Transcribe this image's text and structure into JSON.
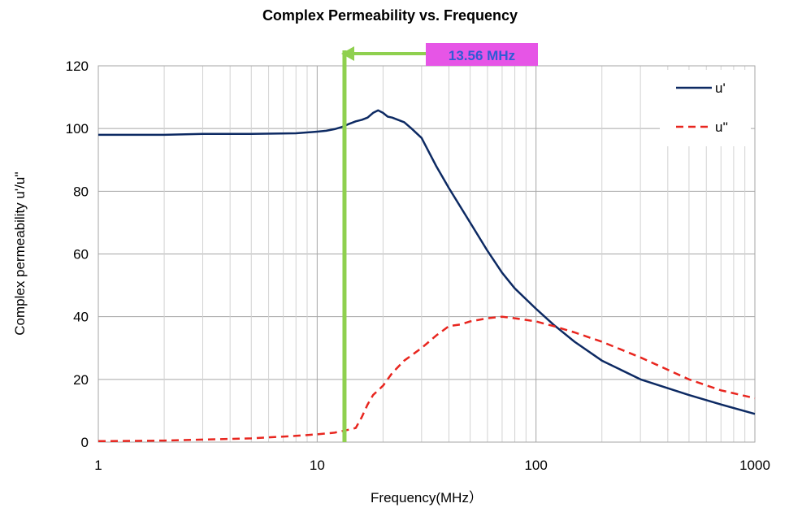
{
  "chart_data": {
    "type": "line",
    "title": "Complex Permeability vs. Frequency",
    "xlabel": "Frequency(MHz）",
    "ylabel": "Complex permeability u'/u''",
    "x_scale": "log",
    "xlim": [
      1,
      1000
    ],
    "ylim": [
      0,
      120
    ],
    "x_ticks": [
      1,
      10,
      100,
      1000
    ],
    "x_tick_labels": [
      "1",
      "10",
      "100",
      "1000"
    ],
    "y_ticks": [
      0,
      20,
      40,
      60,
      80,
      100,
      120
    ],
    "y_tick_labels": [
      "0",
      "20",
      "40",
      "60",
      "80",
      "100",
      "120"
    ],
    "grid": true,
    "legend_position": "top-right",
    "series": [
      {
        "name": "u'",
        "color": "#0d2a63",
        "style": "solid",
        "x": [
          1,
          1.5,
          2,
          3,
          5,
          8,
          10,
          11,
          12,
          13,
          14,
          15,
          16,
          17,
          18,
          19,
          20,
          21,
          22,
          25,
          27,
          30,
          35,
          40,
          50,
          60,
          70,
          80,
          100,
          120,
          150,
          200,
          300,
          500,
          700,
          1000
        ],
        "y": [
          98,
          98,
          98,
          98.3,
          98.3,
          98.5,
          99,
          99.3,
          99.8,
          100.5,
          101.5,
          102.3,
          102.8,
          103.5,
          105,
          105.8,
          105,
          103.8,
          103.5,
          102,
          100,
          97,
          88,
          81,
          70,
          61,
          54,
          49,
          42.5,
          37.5,
          32,
          26,
          20,
          15,
          12,
          9
        ]
      },
      {
        "name": "u''",
        "color": "#e8261f",
        "style": "dashed",
        "x": [
          1,
          1.5,
          2,
          3,
          5,
          8,
          10,
          12,
          14,
          15,
          16,
          17,
          18,
          20,
          22,
          25,
          30,
          35,
          40,
          45,
          50,
          60,
          70,
          80,
          100,
          120,
          150,
          200,
          300,
          500,
          700,
          1000
        ],
        "y": [
          0.3,
          0.4,
          0.5,
          0.8,
          1.2,
          2,
          2.5,
          3,
          4,
          4.5,
          8,
          12,
          15,
          18,
          22,
          26,
          30,
          34,
          37,
          37.5,
          38.5,
          39.5,
          40,
          39.5,
          38.5,
          37,
          35,
          32,
          27,
          20,
          16.5,
          14
        ]
      }
    ],
    "annotations": [
      {
        "text": "13.56 MHz",
        "x": 13.56,
        "background": "#e655e6",
        "line_color": "#8fd04f"
      }
    ]
  }
}
